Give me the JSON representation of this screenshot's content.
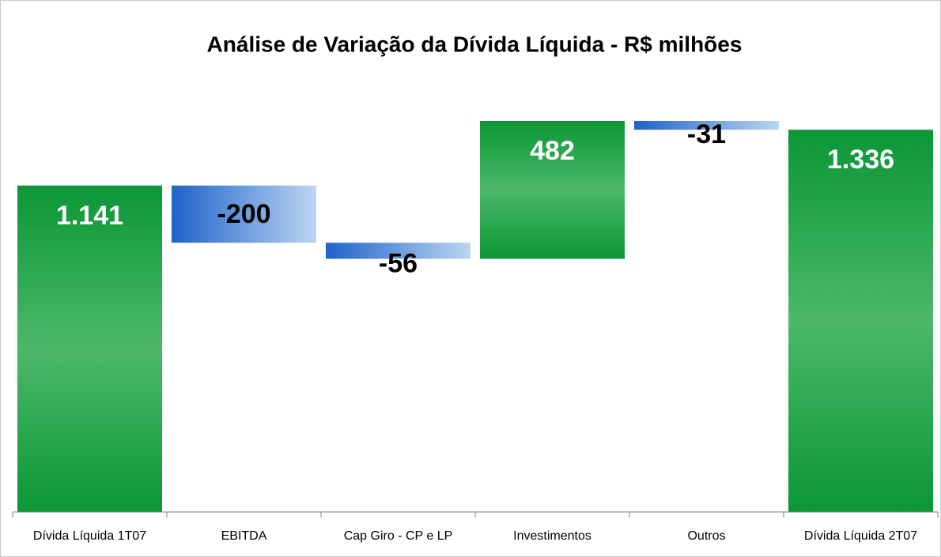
{
  "chart_data": {
    "type": "waterfall",
    "title": "Análise de Variação da Dívida Líquida - R$ milhões",
    "categories": [
      "Dívida Líquida 1T07",
      "EBITDA",
      "Cap Giro - CP e LP",
      "Investimentos",
      "Outros",
      "Dívida Líquida 2T07"
    ],
    "values": [
      1141,
      -200,
      -56,
      482,
      -31,
      1336
    ],
    "value_labels": [
      "1.141",
      "-200",
      "-56",
      "482",
      "-31",
      "1.336"
    ],
    "is_total": [
      true,
      false,
      false,
      false,
      false,
      true
    ],
    "colors": [
      "#0f9a3c",
      "#1f62c9",
      "#1f62c9",
      "#0f9a3c",
      "#1f62c9",
      "#0f9a3c"
    ]
  }
}
